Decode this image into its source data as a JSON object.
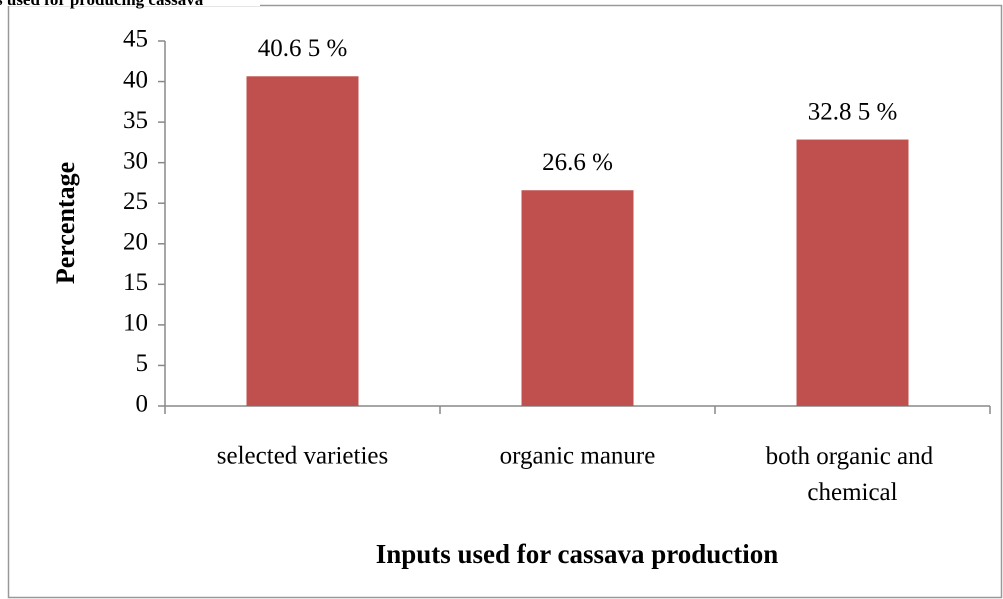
{
  "chart_data": {
    "type": "bar",
    "title": "s used for producing cassava",
    "categories": [
      "selected varieties",
      "organic manure",
      "both organic and chemical"
    ],
    "values": [
      40.65,
      26.6,
      32.85
    ],
    "value_labels": [
      "40.6 5 %",
      "26.6 %",
      "32.8 5 %"
    ],
    "color": "#c0504d",
    "ylabel": "Percentage",
    "xlabel": "Inputs used for cassava production",
    "ylim": [
      0,
      45
    ],
    "yticks": [
      0,
      5,
      10,
      15,
      20,
      25,
      30,
      35,
      40,
      45
    ],
    "grid": false
  }
}
